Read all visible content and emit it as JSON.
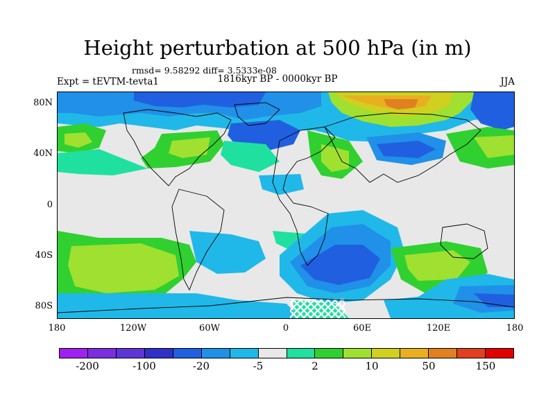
{
  "title": "Height perturbation at 500 hPa (in m)",
  "stats": "rmsd= 9.58292 diff= 3.5333e-08",
  "experiment": "Expt = tEVTM-tevta1",
  "period": "1816kyr BP - 0000kyr BP",
  "season": "JJA",
  "lat_ticks": [
    "80N",
    "40N",
    "0",
    "40S",
    "80S"
  ],
  "lon_ticks": [
    "180",
    "120W",
    "60W",
    "0",
    "60E",
    "120E",
    "180"
  ],
  "colorbar": {
    "colors": [
      "#a020f0",
      "#7a2ee0",
      "#5e36d8",
      "#3030c8",
      "#2060e0",
      "#2090e8",
      "#20b8e8",
      "#e8e8e8",
      "#20e0a0",
      "#30d030",
      "#a0e030",
      "#d0d020",
      "#e8b020",
      "#e08020",
      "#e04020",
      "#e00000"
    ],
    "labels": [
      "-200",
      "-100",
      "-20",
      "-5",
      "2",
      "10",
      "50",
      "150"
    ]
  }
}
